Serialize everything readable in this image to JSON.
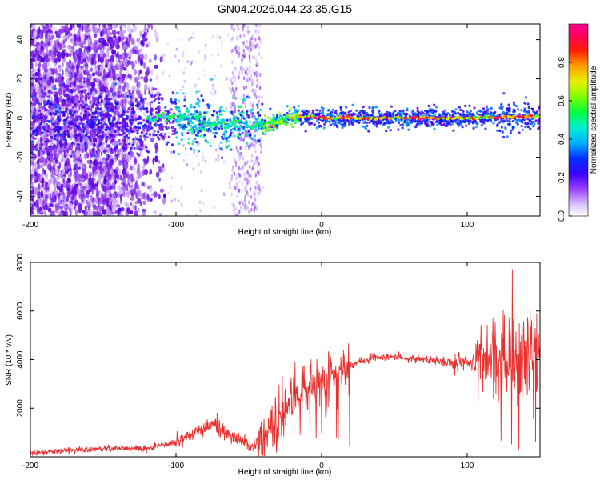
{
  "chart_data": [
    {
      "type": "heatmap",
      "title": "GN04.2026.044.23.35.G15",
      "xlabel": "Height of straight line (km)",
      "ylabel": "Frequency (Hz)",
      "xlim": [
        -200,
        150
      ],
      "ylim": [
        -50,
        48
      ],
      "xticks": [
        -200,
        -100,
        0,
        100
      ],
      "yticks": [
        -40,
        -20,
        0,
        20,
        40
      ],
      "colorbar": {
        "label": "Normalized spectral amplitude",
        "range": [
          0.0,
          1.0
        ],
        "ticks": [
          0.0,
          0.2,
          0.4,
          0.6,
          0.8
        ],
        "colormap": [
          "#ffffff",
          "#c9a8ff",
          "#8a2be2",
          "#5a00e0",
          "#0010ff",
          "#00a0ff",
          "#00e0e0",
          "#00ff60",
          "#60ff00",
          "#e0ff00",
          "#ffb000",
          "#ff3000",
          "#ff0060",
          "#ff0090"
        ]
      },
      "ridge": [
        {
          "x": -200,
          "f": 0
        },
        {
          "x": -150,
          "f": -2
        },
        {
          "x": -100,
          "f": 0
        },
        {
          "x": -75,
          "f": -3
        },
        {
          "x": -55,
          "f": -3
        },
        {
          "x": -40,
          "f": -4
        },
        {
          "x": -30,
          "f": -2
        },
        {
          "x": -20,
          "f": 1
        },
        {
          "x": 0,
          "f": 0
        },
        {
          "x": 50,
          "f": 0
        },
        {
          "x": 100,
          "f": 0
        },
        {
          "x": 150,
          "f": 1
        }
      ]
    },
    {
      "type": "line",
      "xlabel": "Height of straight line (km)",
      "ylabel": "SNR (10 * v/v)",
      "xlim": [
        -200,
        150
      ],
      "ylim": [
        0,
        8000
      ],
      "xticks": [
        -200,
        -100,
        0,
        100
      ],
      "yticks": [
        2000,
        4000,
        6000,
        8000
      ],
      "series": [
        {
          "name": "SNR",
          "color": "#e8302e",
          "x": [
            -200,
            -180,
            -160,
            -140,
            -120,
            -100,
            -90,
            -80,
            -75,
            -70,
            -60,
            -50,
            -45,
            -40,
            -30,
            -20,
            -10,
            0,
            10,
            20,
            30,
            40,
            50,
            60,
            70,
            80,
            90,
            100,
            110,
            120,
            130,
            140,
            150
          ],
          "y": [
            150,
            250,
            300,
            350,
            350,
            600,
            900,
            1200,
            1400,
            1200,
            800,
            500,
            400,
            800,
            1500,
            2500,
            2900,
            3100,
            3400,
            3800,
            4000,
            4100,
            4100,
            4050,
            4000,
            3950,
            3900,
            3850,
            3900,
            4000,
            4000,
            3700,
            4000
          ]
        }
      ]
    }
  ]
}
